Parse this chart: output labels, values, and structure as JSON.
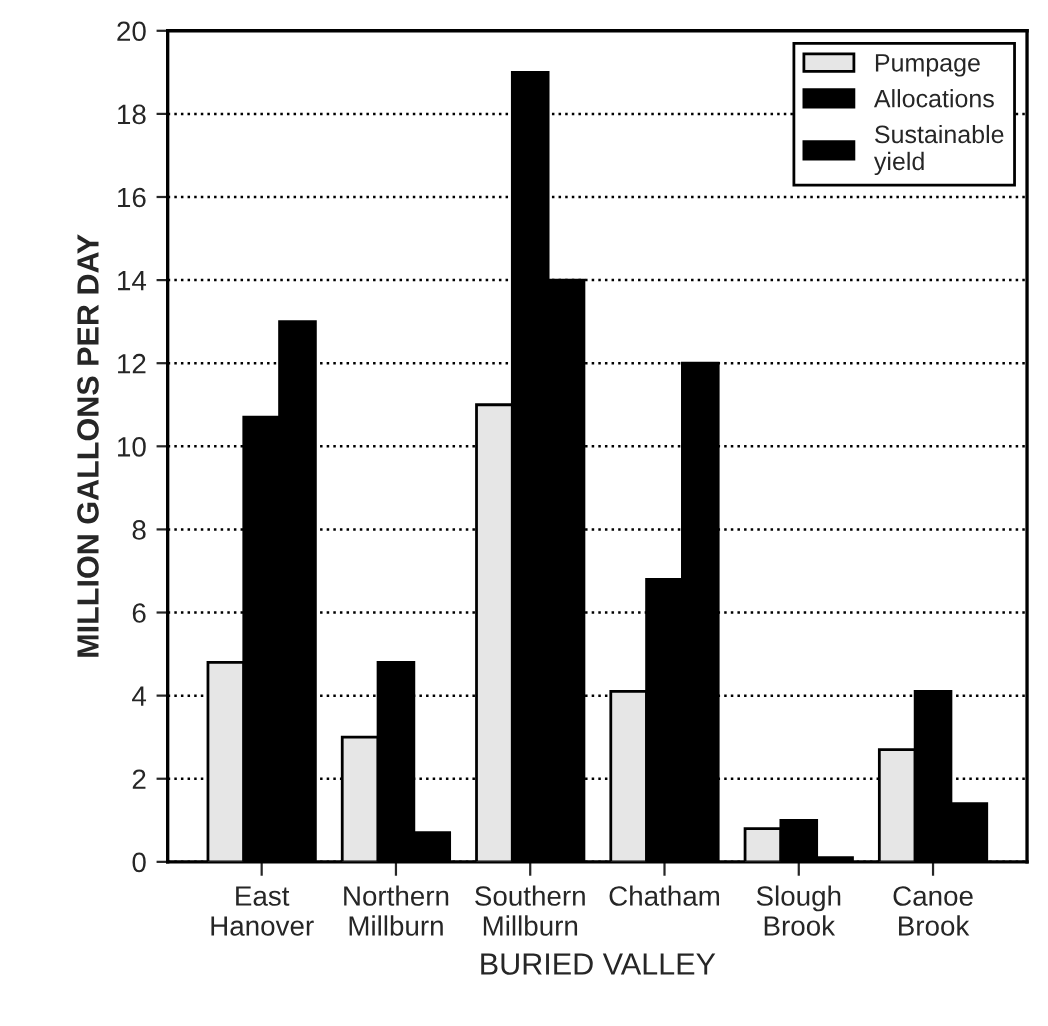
{
  "chart_data": {
    "type": "bar",
    "xlabel": "BURIED VALLEY",
    "ylabel": "MILLION GALLONS PER DAY",
    "categories": [
      "East\nHanover",
      "Northern\nMillburn",
      "Southern\nMillburn",
      "Chatham",
      "Slough\nBrook",
      "Canoe\nBrook"
    ],
    "series": [
      {
        "name": "Pumpage",
        "color": "#e6e6e6",
        "values": [
          4.8,
          3.0,
          11.0,
          4.1,
          0.8,
          2.7
        ]
      },
      {
        "name": "Allocations",
        "color": "#000000",
        "values": [
          10.7,
          4.8,
          19.0,
          6.8,
          1.0,
          4.1
        ]
      },
      {
        "name": "Sustainable\nyield",
        "color": "#000000",
        "values": [
          13.0,
          0.7,
          14.0,
          12.0,
          0.1,
          1.4
        ]
      }
    ],
    "ylim": [
      0,
      20
    ],
    "yticks": [
      0,
      2,
      4,
      6,
      8,
      10,
      12,
      14,
      16,
      18,
      20
    ],
    "grid": "y",
    "legend": "top right"
  }
}
